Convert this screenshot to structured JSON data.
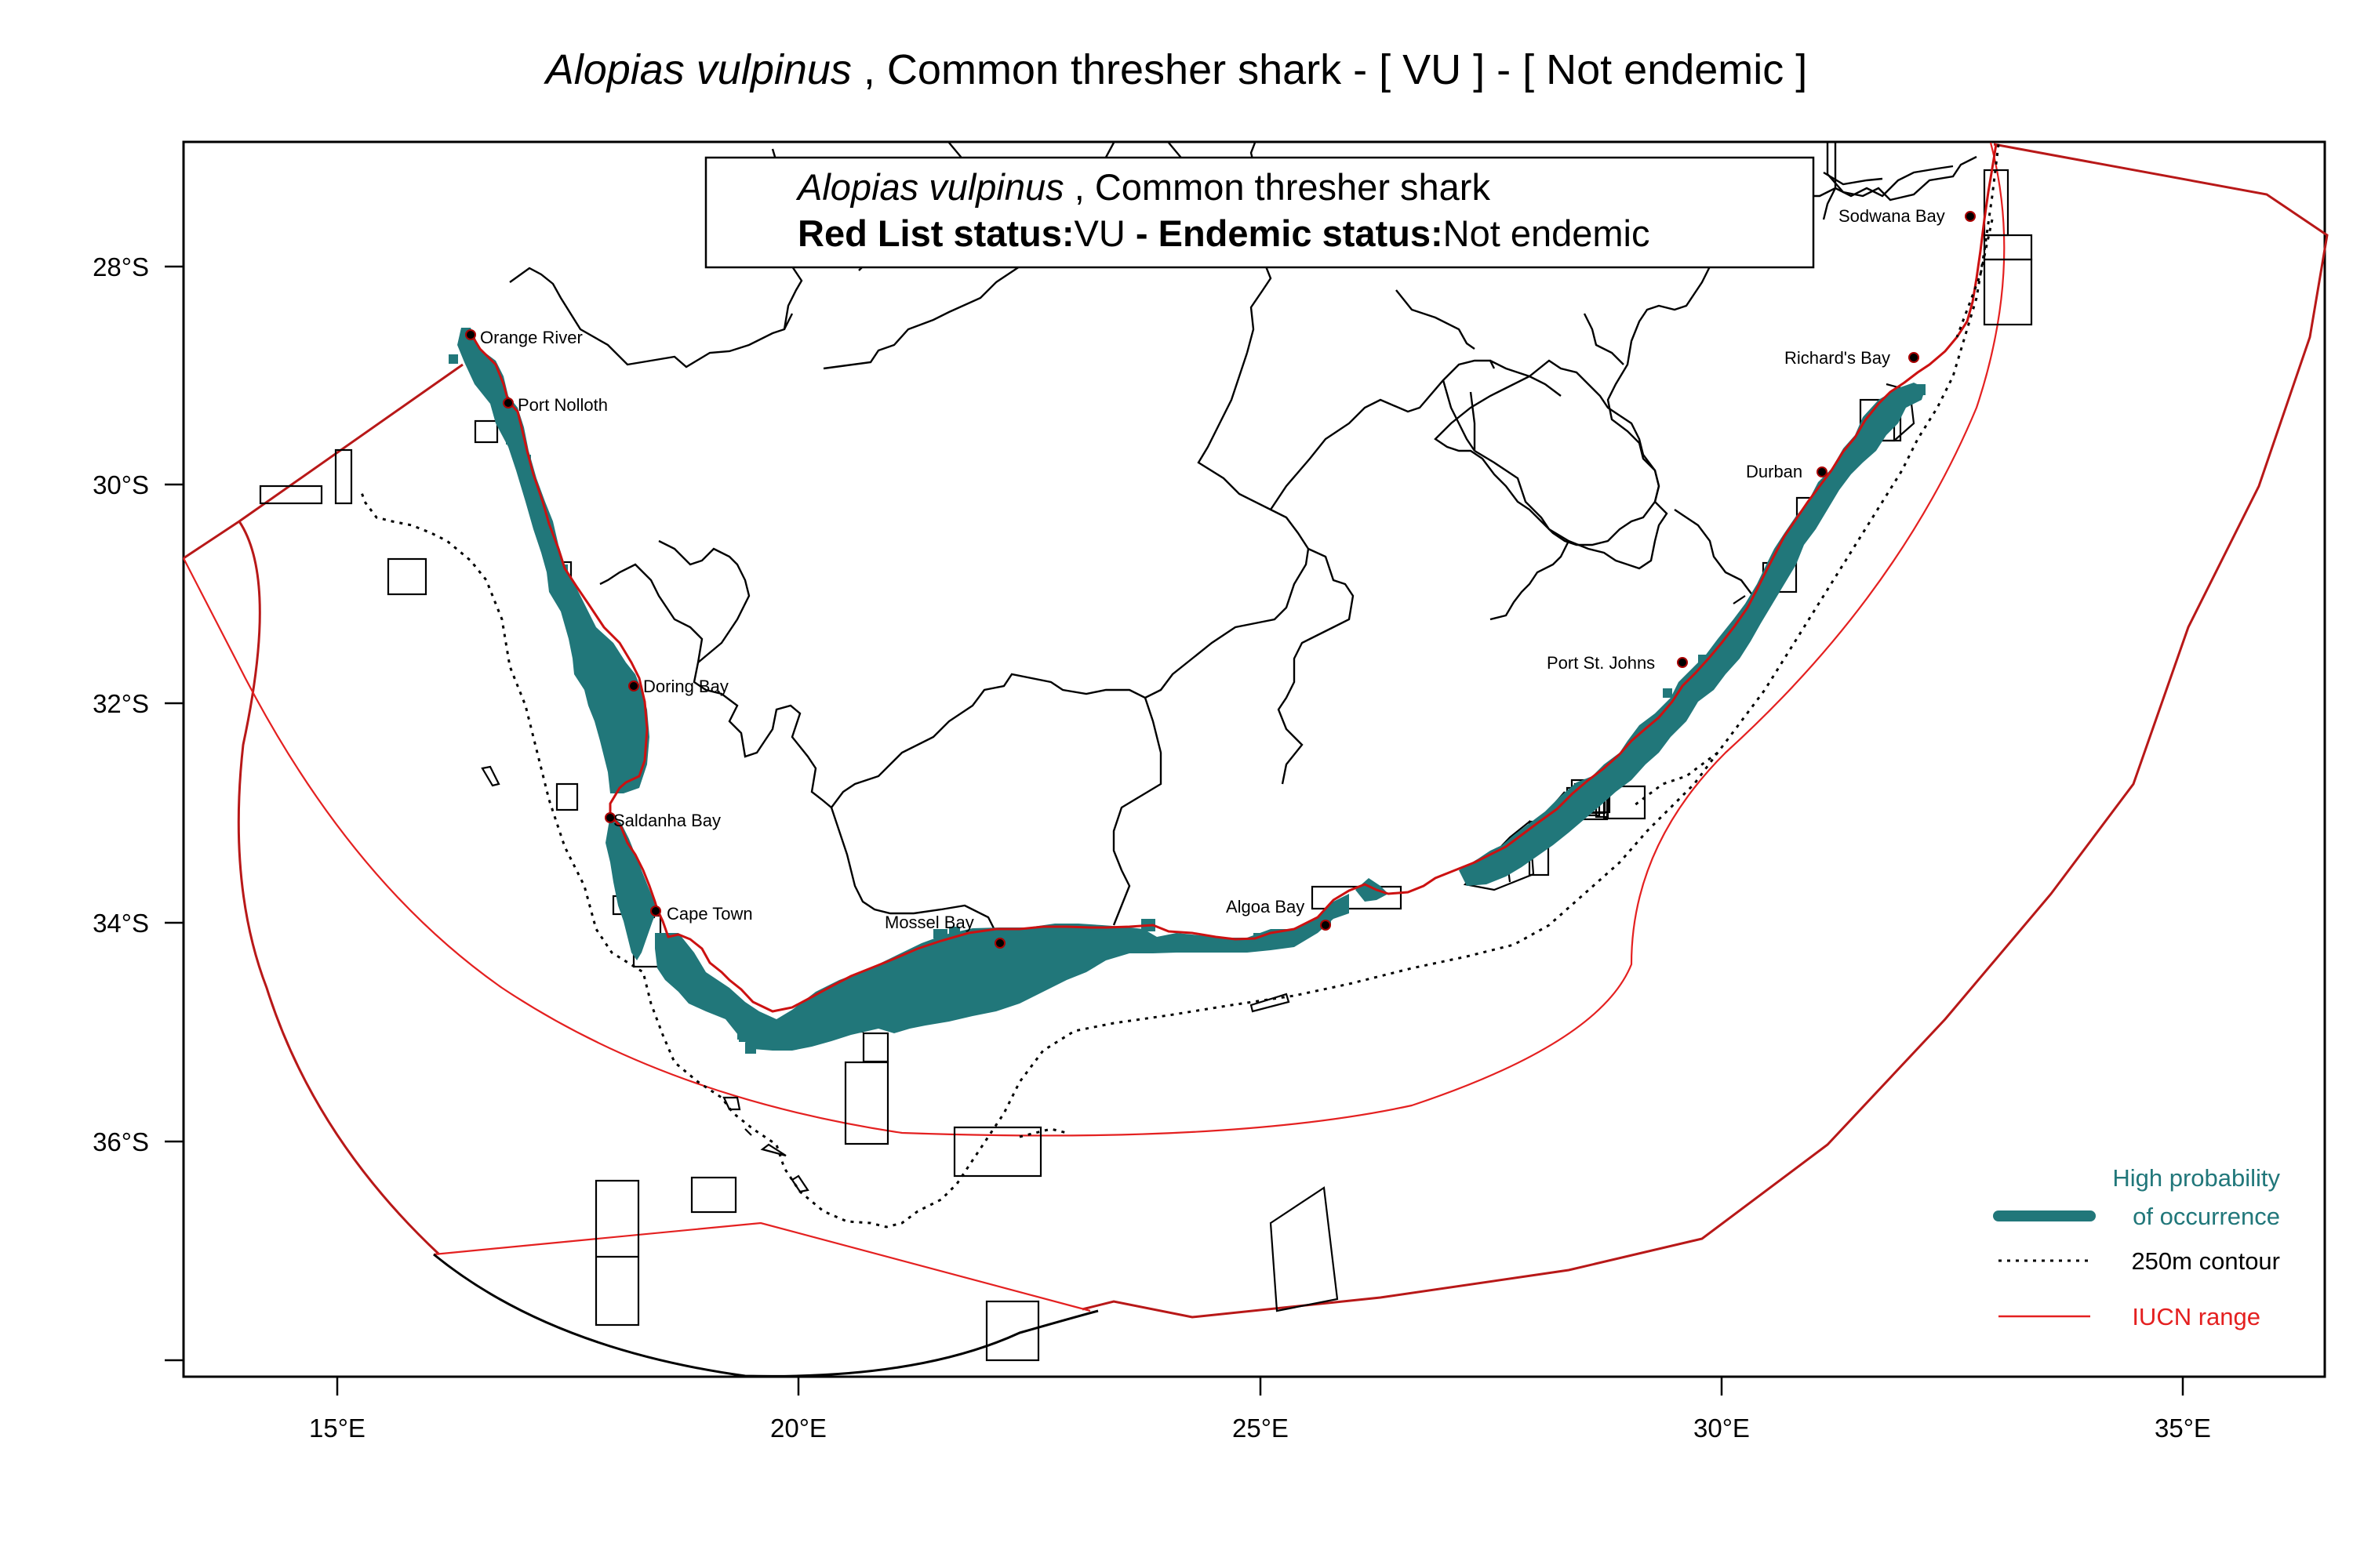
{
  "title": {
    "species": "Alopias vulpinus",
    "rest": " , Common thresher shark  - [ VU ] - [ Not endemic ]"
  },
  "info_box": {
    "species": "Alopias vulpinus",
    "common": " , Common thresher shark",
    "redlist_label": "Red List status:",
    "redlist_value": "VU",
    "endemic_label": " - Endemic status:",
    "endemic_value": "Not endemic"
  },
  "axes": {
    "x_ticks": [
      "15°E",
      "20°E",
      "25°E",
      "30°E",
      "35°E"
    ],
    "y_ticks": [
      "28°S",
      "30°S",
      "32°S",
      "34°S",
      "36°S"
    ]
  },
  "places": [
    {
      "name": "Orange River",
      "lon": 16.45,
      "lat": 28.63
    },
    {
      "name": "Port Nolloth",
      "lon": 16.87,
      "lat": 29.25
    },
    {
      "name": "Doring Bay",
      "lon": 18.23,
      "lat": 31.8
    },
    {
      "name": "Saldanha Bay",
      "lon": 17.93,
      "lat": 33.05
    },
    {
      "name": "Cape Town",
      "lon": 18.42,
      "lat": 33.9
    },
    {
      "name": "Mossel Bay",
      "lon": 22.14,
      "lat": 34.18
    },
    {
      "name": "Algoa Bay",
      "lon": 25.7,
      "lat": 34.0
    },
    {
      "name": "Port St. Johns",
      "lon": 29.55,
      "lat": 31.63
    },
    {
      "name": "Durban",
      "lon": 31.03,
      "lat": 29.87
    },
    {
      "name": "Richard's Bay",
      "lon": 32.05,
      "lat": 28.8
    },
    {
      "name": "Sodwana Bay",
      "lon": 32.68,
      "lat": 27.53
    }
  ],
  "legend": {
    "occurrence_line1": "High probability",
    "occurrence_line2": "of occurrence",
    "contour": "250m contour",
    "iucn": "IUCN range"
  },
  "colors": {
    "occurrence": "#21777a",
    "iucn": "#dd1c1c",
    "coast": "#cc1111",
    "contour": "#000000"
  }
}
